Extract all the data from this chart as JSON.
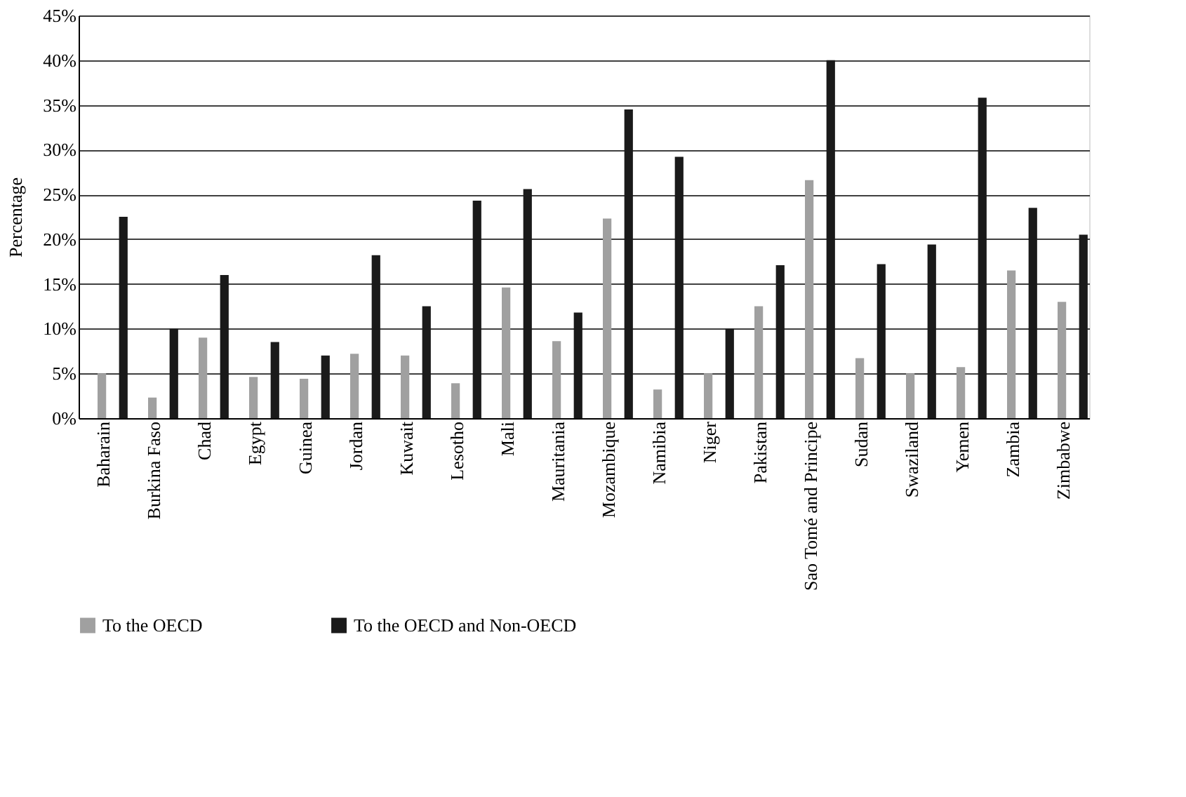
{
  "chart_data": {
    "type": "bar",
    "ylabel": "Percentage",
    "categories": [
      "Baharain",
      "Burkina Faso",
      "Chad",
      "Egypt",
      "Guinea",
      "Jordan",
      "Kuwait",
      "Lesotho",
      "Mali",
      "Mauritania",
      "Mozambique",
      "Namibia",
      "Niger",
      "Pakistan",
      "Sao Tomé and Principe",
      "Sudan",
      "Swaziland",
      "Yemen",
      "Zambia",
      "Zimbabwe"
    ],
    "series": [
      {
        "name": "To the OECD",
        "color": "#a0a0a0",
        "values": [
          5,
          2.3,
          9,
          4.6,
          4.4,
          7.2,
          7,
          3.9,
          14.6,
          8.6,
          22.3,
          3.2,
          5,
          12.5,
          26.6,
          6.7,
          5,
          5.7,
          16.5,
          13
        ]
      },
      {
        "name": "To the OECD and Non-OECD",
        "color": "#1a1a1a",
        "values": [
          22.5,
          10,
          16,
          8.5,
          7,
          18.2,
          12.5,
          24.3,
          25.6,
          11.8,
          34.5,
          29.2,
          10,
          17.1,
          40,
          17.2,
          19.4,
          35.8,
          23.5,
          20.5
        ]
      }
    ],
    "ylim": [
      0,
      45
    ],
    "yticks": [
      {
        "value": 0,
        "label": "0%"
      },
      {
        "value": 5,
        "label": "5%"
      },
      {
        "value": 10,
        "label": "10%"
      },
      {
        "value": 15,
        "label": "15%"
      },
      {
        "value": 20,
        "label": "20%"
      },
      {
        "value": 25,
        "label": "25%"
      },
      {
        "value": 30,
        "label": "30%"
      },
      {
        "value": 35,
        "label": "35%"
      },
      {
        "value": 40,
        "label": "40%"
      },
      {
        "value": 45,
        "label": "45%"
      }
    ],
    "grid": "y",
    "legend": "bottom left"
  }
}
